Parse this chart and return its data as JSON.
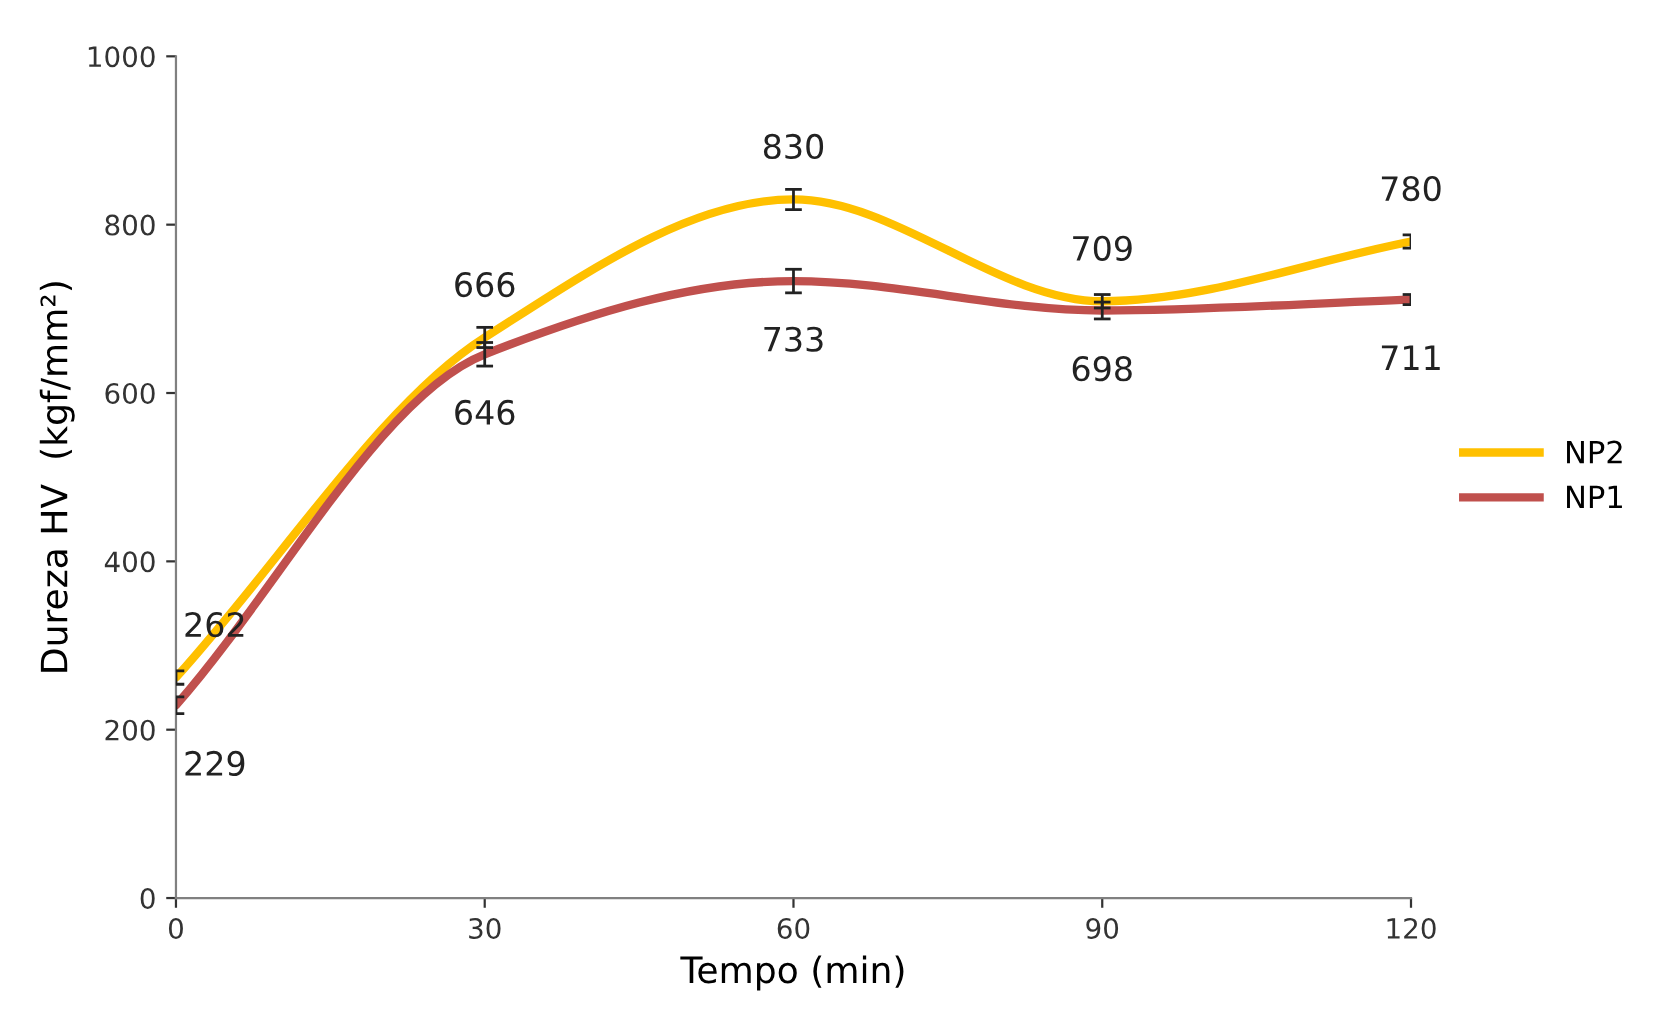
{
  "chart_data": {
    "type": "line",
    "xlabel": "Tempo (min)",
    "ylabel": "Dureza HV  (kgf/mm²)",
    "x": [
      0,
      30,
      60,
      90,
      120
    ],
    "xlim": [
      0,
      120
    ],
    "xticks": [
      0,
      30,
      60,
      90,
      120
    ],
    "ylim": [
      0,
      1000
    ],
    "yticks": [
      0,
      200,
      400,
      600,
      800,
      1000
    ],
    "series": [
      {
        "name": "NP2",
        "color": "#ffc000",
        "values": [
          262,
          666,
          830,
          709,
          780
        ],
        "errors": [
          8,
          12,
          12,
          8,
          8
        ]
      },
      {
        "name": "NP1",
        "color": "#c0504d",
        "values": [
          229,
          646,
          733,
          698,
          711
        ],
        "errors": [
          10,
          14,
          14,
          10,
          6
        ]
      }
    ],
    "data_labels": true,
    "legend": "right",
    "grid": false,
    "marker": "none",
    "line_style": "solid"
  }
}
